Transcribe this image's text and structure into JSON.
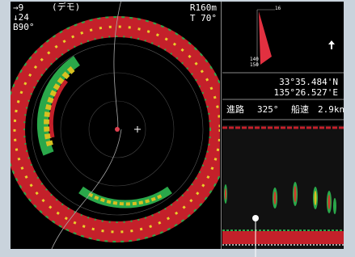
{
  "status": {
    "heading": "→9",
    "depth": "↓24",
    "bearing": "B90°",
    "mode": "(デモ)",
    "range": "R160m",
    "tilt": "T 70°"
  },
  "compass": {
    "top": "16",
    "left_top": "140",
    "left_bottom": "150"
  },
  "position": {
    "lat": "33°35.484'N",
    "lon": "135°26.527'E"
  },
  "nav": {
    "course_label": "進路",
    "course": "325°",
    "speed_label": "船速",
    "speed": "2.9kn"
  }
}
